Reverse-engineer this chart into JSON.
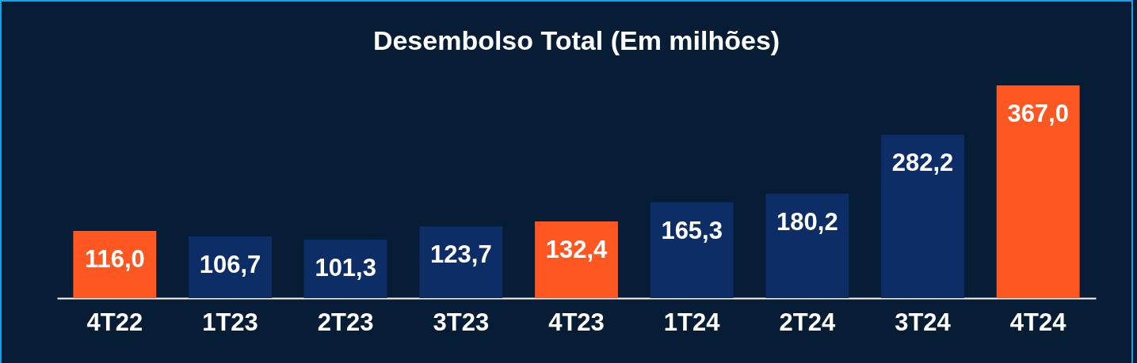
{
  "chart_data": {
    "type": "bar",
    "title": "Desembolso Total (Em milhões)",
    "categories": [
      "4T22",
      "1T23",
      "2T23",
      "3T23",
      "4T23",
      "1T24",
      "2T24",
      "3T24",
      "4T24"
    ],
    "values": [
      116.0,
      106.7,
      101.3,
      123.7,
      132.4,
      165.3,
      180.2,
      282.2,
      367.0
    ],
    "value_labels": [
      "116,0",
      "106,7",
      "101,3",
      "123,7",
      "132,4",
      "165,3",
      "180,2",
      "282,2",
      "367,0"
    ],
    "colors": [
      "#ff5722",
      "#0c2d66",
      "#0c2d66",
      "#0c2d66",
      "#ff5722",
      "#0c2d66",
      "#0c2d66",
      "#0c2d66",
      "#ff5722"
    ],
    "grid": false,
    "legend": false
  }
}
